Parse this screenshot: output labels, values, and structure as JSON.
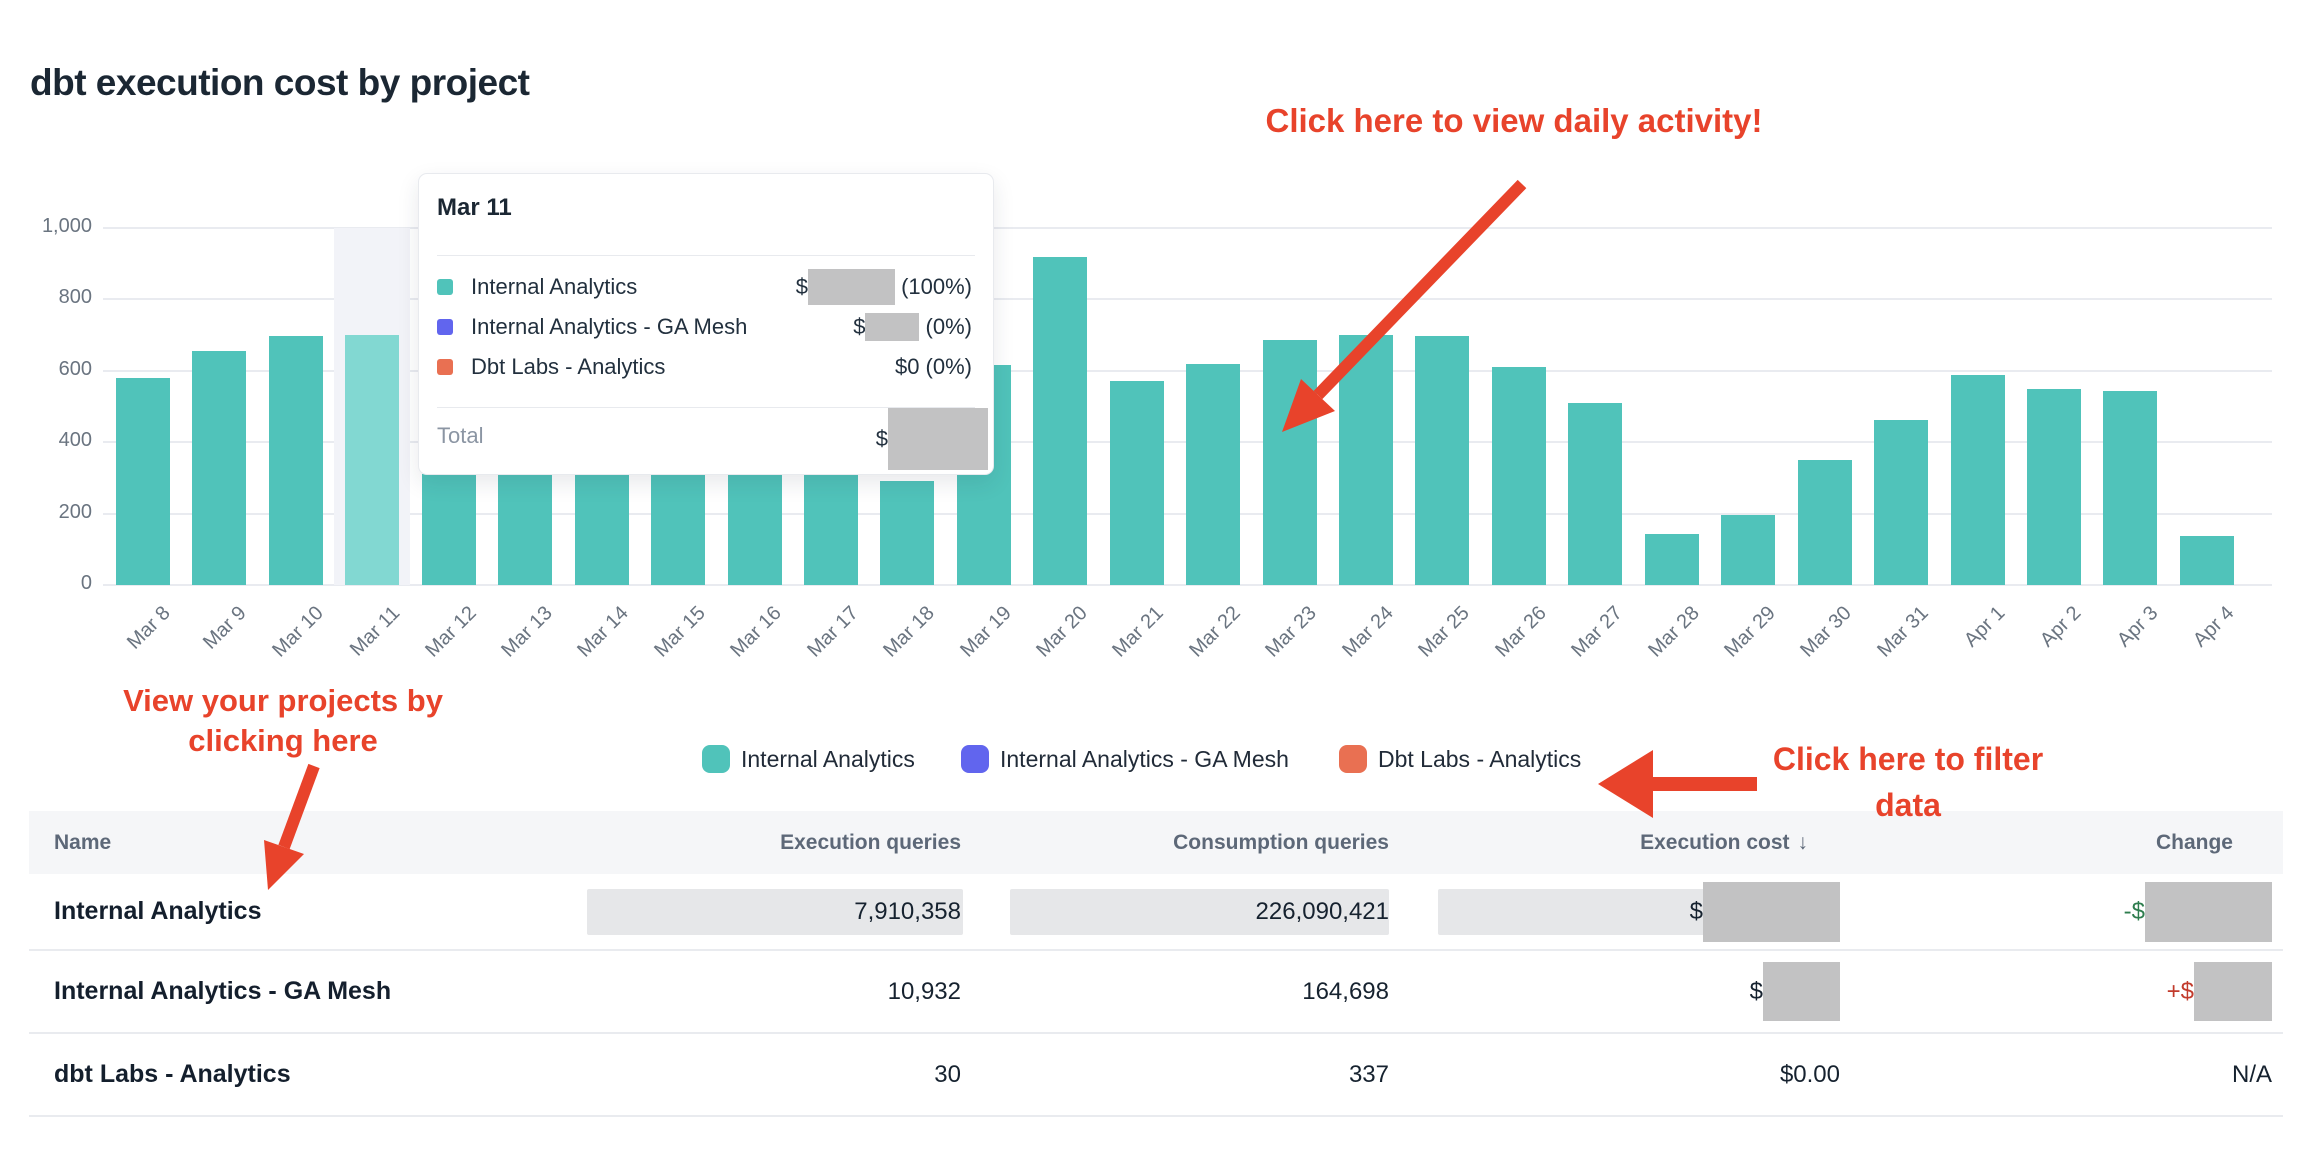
{
  "page": {
    "title": "dbt execution cost by project"
  },
  "annotations": {
    "color": "#e8432b",
    "daily_activity": "Click here to view daily activity!",
    "projects_line1": "View your projects by",
    "projects_line2": "clicking here",
    "filter_line1": "Click here to filter",
    "filter_line2": "data"
  },
  "chart_data": {
    "type": "bar",
    "title": "dbt execution cost by project",
    "x": [
      "Mar 8",
      "Mar 9",
      "Mar 10",
      "Mar 11",
      "Mar 12",
      "Mar 13",
      "Mar 14",
      "Mar 15",
      "Mar 16",
      "Mar 17",
      "Mar 18",
      "Mar 19",
      "Mar 20",
      "Mar 21",
      "Mar 22",
      "Mar 23",
      "Mar 24",
      "Mar 25",
      "Mar 26",
      "Mar 27",
      "Mar 28",
      "Mar 29",
      "Mar 30",
      "Mar 31",
      "Apr 1",
      "Apr 2",
      "Apr 3",
      "Apr 4"
    ],
    "values": [
      580,
      655,
      697,
      700,
      310,
      310,
      310,
      310,
      310,
      310,
      290,
      615,
      920,
      572,
      620,
      685,
      700,
      698,
      612,
      510,
      144,
      197,
      350,
      463,
      587,
      550,
      543,
      137
    ],
    "note": "values approximate; Mar 12-17 bar tops are hidden behind the tooltip overlay",
    "ylim": [
      0,
      1000
    ],
    "ytick_values": [
      0,
      200,
      400,
      600,
      800,
      1000
    ],
    "ytick_labels": [
      "0",
      "200",
      "400",
      "600",
      "800",
      "1,000"
    ],
    "grid": "horizontal",
    "bar_color": "#50c3ba",
    "hovered_bar_color": "#82d8d2",
    "hovered_index": 3,
    "hovered_label": "Mar 11",
    "legend_position": "bottom"
  },
  "tooltip": {
    "title": "Mar 11",
    "rows": [
      {
        "label": "Internal Analytics",
        "color": "#50c3ba",
        "prefix": "$",
        "redacted": true,
        "suffix": " (100%)"
      },
      {
        "label": "Internal Analytics - GA Mesh",
        "color": "#6165ee",
        "prefix": "$",
        "redacted": true,
        "suffix": " (0%)"
      },
      {
        "label": "Dbt Labs - Analytics",
        "color": "#e97052",
        "value": "$0 (0%)",
        "redacted": false
      }
    ],
    "total_label": "Total",
    "total_prefix": "$",
    "total_redacted": true
  },
  "legend": [
    {
      "label": "Internal Analytics",
      "color": "#50c3ba"
    },
    {
      "label": "Internal Analytics - GA Mesh",
      "color": "#6165ee"
    },
    {
      "label": "Dbt Labs - Analytics",
      "color": "#e97052"
    }
  ],
  "table": {
    "columns": [
      {
        "label": "Name"
      },
      {
        "label": "Execution queries"
      },
      {
        "label": "Consumption queries"
      },
      {
        "label": "Execution cost",
        "sort": "desc",
        "sort_glyph": "↓"
      },
      {
        "label": "Change"
      }
    ],
    "rows": [
      {
        "name": "Internal Analytics",
        "execution_queries": "7,910,358",
        "consumption_queries": "226,090,421",
        "execution_cost": {
          "prefix": "$",
          "redacted": true
        },
        "change": {
          "prefix": "-$",
          "redacted": true,
          "direction": "down"
        }
      },
      {
        "name": "Internal Analytics - GA Mesh",
        "execution_queries": "10,932",
        "consumption_queries": "164,698",
        "execution_cost": {
          "prefix": "$",
          "redacted": true
        },
        "change": {
          "prefix": "+$",
          "redacted": true,
          "direction": "up"
        }
      },
      {
        "name": "dbt Labs - Analytics",
        "execution_queries": "30",
        "consumption_queries": "337",
        "execution_cost": {
          "text": "$0.00"
        },
        "change": {
          "text": "N/A"
        }
      }
    ],
    "change_down_color": "#2e7d4e",
    "change_up_color": "#c23b2c"
  }
}
